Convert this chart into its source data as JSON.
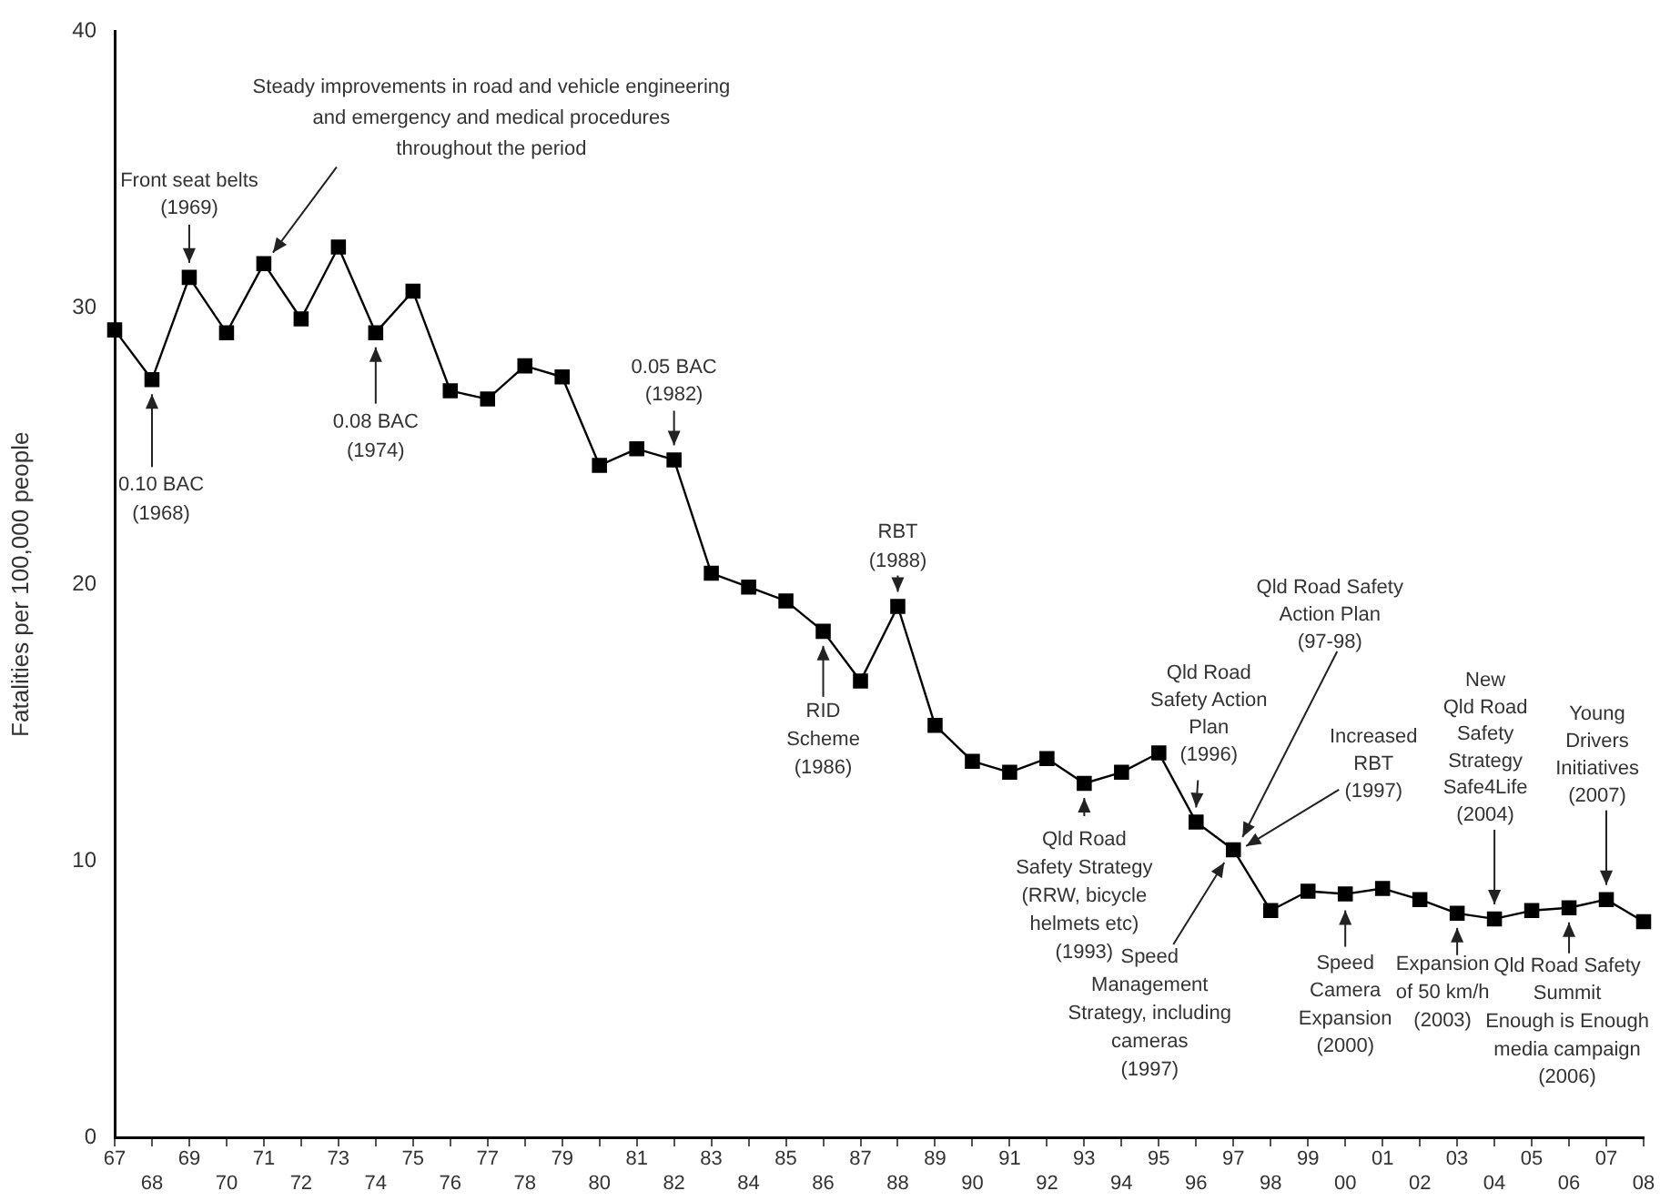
{
  "chart_data": {
    "type": "line",
    "ylabel": "Fatalities per 100,000 people",
    "categories": [
      "67",
      "68",
      "69",
      "70",
      "71",
      "72",
      "73",
      "74",
      "75",
      "76",
      "77",
      "78",
      "79",
      "80",
      "81",
      "82",
      "83",
      "84",
      "85",
      "86",
      "87",
      "88",
      "89",
      "90",
      "91",
      "92",
      "93",
      "94",
      "95",
      "96",
      "97",
      "98",
      "99",
      "00",
      "01",
      "02",
      "03",
      "04",
      "05",
      "06",
      "07",
      "08"
    ],
    "values": [
      29.2,
      27.4,
      31.1,
      29.1,
      31.6,
      29.6,
      32.2,
      29.1,
      30.6,
      27.0,
      26.7,
      27.9,
      27.5,
      24.3,
      24.9,
      24.5,
      20.4,
      19.9,
      19.4,
      18.3,
      16.5,
      19.2,
      14.9,
      13.6,
      13.2,
      13.7,
      12.8,
      13.2,
      13.9,
      11.4,
      10.4,
      8.2,
      8.9,
      8.8,
      9.0,
      8.6,
      8.1,
      7.9,
      8.2,
      8.3,
      8.6,
      7.8
    ],
    "color": "#000000",
    "marker": "square",
    "ylim": [
      0,
      40
    ],
    "yticks": [
      0,
      10,
      20,
      30,
      40
    ],
    "grid": false,
    "legend": false,
    "annotations": [
      {
        "text": "Steady improvements in road and vehicle engineering\nand emergency and medical procedures\nthroughout the period",
        "x": "71",
        "y": 31.6
      },
      {
        "text": "Front seat belts\n(1969)",
        "x": "69",
        "y": 31.1
      },
      {
        "text": "0.10 BAC\n(1968)",
        "x": "68",
        "y": 27.4
      },
      {
        "text": "0.08 BAC\n(1974)",
        "x": "74",
        "y": 29.1
      },
      {
        "text": "0.05 BAC\n(1982)",
        "x": "82",
        "y": 24.5
      },
      {
        "text": "RBT\n(1988)",
        "x": "88",
        "y": 19.2
      },
      {
        "text": "RID\nScheme\n(1986)",
        "x": "86",
        "y": 18.3
      },
      {
        "text": "Qld Road\nSafety Strategy\n(RRW, bicycle\nhelmets etc)\n(1993)",
        "x": "93",
        "y": 12.8
      },
      {
        "text": "Qld Road\nSafety Action\nPlan\n(1996)",
        "x": "96",
        "y": 11.4
      },
      {
        "text": "Qld Road Safety\nAction Plan\n(97-98)",
        "x": "97",
        "y": 10.4
      },
      {
        "text": "Increased\nRBT\n(1997)",
        "x": "97",
        "y": 10.4
      },
      {
        "text": "Speed\nManagement\nStrategy, including\ncameras\n(1997)",
        "x": "97",
        "y": 10.4
      },
      {
        "text": "Speed\nCamera\nExpansion\n(2000)",
        "x": "00",
        "y": 8.8
      },
      {
        "text": "Expansion\nof 50 km/h\n(2003)",
        "x": "03",
        "y": 8.1
      },
      {
        "text": "New\nQld Road\nSafety\nStrategy\nSafe4Life\n(2004)",
        "x": "04",
        "y": 7.9
      },
      {
        "text": "Young\nDrivers\nInitiatives\n(2007)",
        "x": "07",
        "y": 8.6
      },
      {
        "text": "Qld Road Safety\nSummit\nEnough is Enough\nmedia campaign\n(2006)",
        "x": "06",
        "y": 8.3
      }
    ]
  }
}
